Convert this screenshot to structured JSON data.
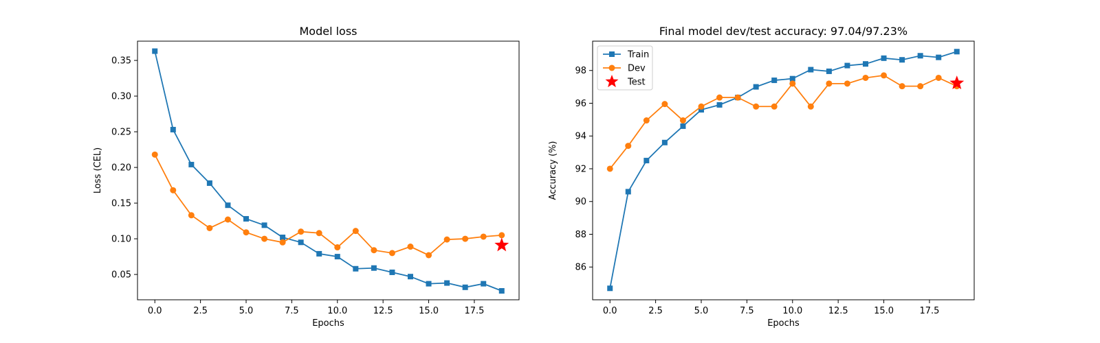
{
  "chart_data": [
    {
      "type": "line",
      "title": "Model loss",
      "xlabel": "Epochs",
      "ylabel": "Loss (CEL)",
      "xlim": [
        -0.95,
        19.95
      ],
      "ylim": [
        0.0145,
        0.377
      ],
      "xticks": [
        0,
        2.5,
        5,
        7.5,
        10,
        12.5,
        15,
        17.5
      ],
      "xtick_labels": [
        "0.0",
        "2.5",
        "5.0",
        "7.5",
        "10.0",
        "12.5",
        "15.0",
        "17.5"
      ],
      "yticks": [
        0.05,
        0.1,
        0.15,
        0.2,
        0.25,
        0.3,
        0.35
      ],
      "ytick_labels": [
        "0.05",
        "0.10",
        "0.15",
        "0.20",
        "0.25",
        "0.30",
        "0.35"
      ],
      "grid": false,
      "legend": null,
      "series": [
        {
          "name": "Train",
          "color": "#1f77b4",
          "marker": "square",
          "x": [
            0,
            1,
            2,
            3,
            4,
            5,
            6,
            7,
            8,
            9,
            10,
            11,
            12,
            13,
            14,
            15,
            16,
            17,
            18,
            19
          ],
          "y": [
            0.363,
            0.253,
            0.204,
            0.178,
            0.147,
            0.128,
            0.119,
            0.102,
            0.095,
            0.079,
            0.075,
            0.058,
            0.059,
            0.053,
            0.047,
            0.037,
            0.038,
            0.032,
            0.037,
            0.027
          ]
        },
        {
          "name": "Dev",
          "color": "#ff7f0e",
          "marker": "circle",
          "x": [
            0,
            1,
            2,
            3,
            4,
            5,
            6,
            7,
            8,
            9,
            10,
            11,
            12,
            13,
            14,
            15,
            16,
            17,
            18,
            19
          ],
          "y": [
            0.218,
            0.168,
            0.133,
            0.115,
            0.127,
            0.109,
            0.1,
            0.095,
            0.11,
            0.108,
            0.088,
            0.111,
            0.084,
            0.08,
            0.089,
            0.077,
            0.099,
            0.1,
            0.103,
            0.105
          ]
        },
        {
          "name": "Test",
          "color": "#ff0000",
          "marker": "star",
          "x": [
            19
          ],
          "y": [
            0.091
          ]
        }
      ]
    },
    {
      "type": "line",
      "title": "Final model dev/test accuracy: 97.04/97.23%",
      "xlabel": "Epochs",
      "ylabel": "Accuracy (%)",
      "xlim": [
        -0.95,
        19.95
      ],
      "ylim": [
        84.0,
        99.79
      ],
      "xticks": [
        0,
        2.5,
        5,
        7.5,
        10,
        12.5,
        15,
        17.5
      ],
      "xtick_labels": [
        "0.0",
        "2.5",
        "5.0",
        "7.5",
        "10.0",
        "12.5",
        "15.0",
        "17.5"
      ],
      "yticks": [
        86,
        88,
        90,
        92,
        94,
        96,
        98
      ],
      "ytick_labels": [
        "86",
        "88",
        "90",
        "92",
        "94",
        "96",
        "98"
      ],
      "grid": false,
      "legend": "top-left",
      "series": [
        {
          "name": "Train",
          "color": "#1f77b4",
          "marker": "square",
          "x": [
            0,
            1,
            2,
            3,
            4,
            5,
            6,
            7,
            8,
            9,
            10,
            11,
            12,
            13,
            14,
            15,
            16,
            17,
            18,
            19
          ],
          "y": [
            84.7,
            90.6,
            92.5,
            93.6,
            94.6,
            95.6,
            95.9,
            96.35,
            97.0,
            97.4,
            97.5,
            98.05,
            97.95,
            98.3,
            98.4,
            98.75,
            98.65,
            98.9,
            98.8,
            99.15
          ]
        },
        {
          "name": "Dev",
          "color": "#ff7f0e",
          "marker": "circle",
          "x": [
            0,
            1,
            2,
            3,
            4,
            5,
            6,
            7,
            8,
            9,
            10,
            11,
            12,
            13,
            14,
            15,
            16,
            17,
            18,
            19
          ],
          "y": [
            92.0,
            93.4,
            94.95,
            95.95,
            94.95,
            95.8,
            96.35,
            96.35,
            95.8,
            95.8,
            97.2,
            95.8,
            97.2,
            97.2,
            97.55,
            97.7,
            97.04,
            97.04,
            97.55,
            97.04
          ]
        },
        {
          "name": "Test",
          "color": "#ff0000",
          "marker": "star",
          "x": [
            19
          ],
          "y": [
            97.23
          ]
        }
      ]
    }
  ]
}
